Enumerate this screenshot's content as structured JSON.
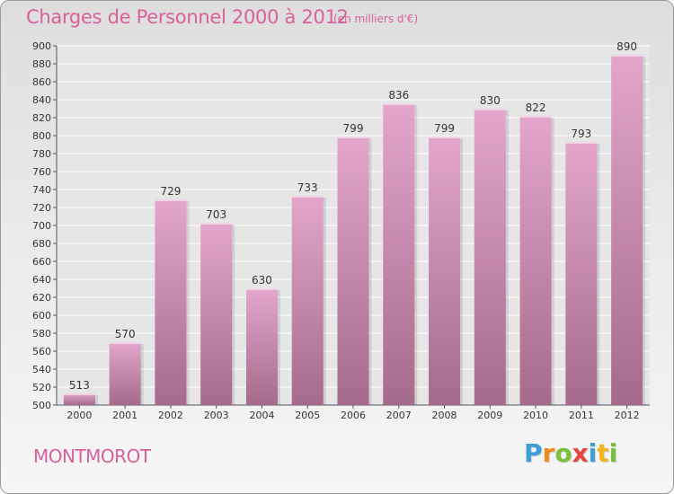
{
  "title": "Charges de Personnel 2000 à 2012",
  "subtitle": "(en milliers d'€)",
  "place": "MONTMOROT",
  "logo": {
    "letters": [
      "P",
      "r",
      "o",
      "x",
      "i",
      "t",
      "i"
    ],
    "colors": [
      "#3aa0d8",
      "#ef8a1e",
      "#7cbf3a",
      "#e8453c",
      "#3aa0d8",
      "#f2b31c",
      "#7cbf3a"
    ]
  },
  "colors": {
    "title": "#d9609a",
    "bar_top": "#e4a6cc",
    "bar_bottom": "#a56a8c"
  },
  "chart_data": {
    "type": "bar",
    "title": "Charges de Personnel 2000 à 2012",
    "subtitle": "(en milliers d'€)",
    "xlabel": "",
    "ylabel": "",
    "categories": [
      "2000",
      "2001",
      "2002",
      "2003",
      "2004",
      "2005",
      "2006",
      "2007",
      "2008",
      "2009",
      "2010",
      "2011",
      "2012"
    ],
    "values": [
      513,
      570,
      729,
      703,
      630,
      733,
      799,
      836,
      799,
      830,
      822,
      793,
      890
    ],
    "ylim": [
      500,
      900
    ],
    "yticks": [
      500,
      520,
      540,
      560,
      580,
      600,
      620,
      640,
      660,
      680,
      700,
      720,
      740,
      760,
      780,
      800,
      820,
      840,
      860,
      880,
      900
    ],
    "grid": true,
    "legend": "none"
  }
}
